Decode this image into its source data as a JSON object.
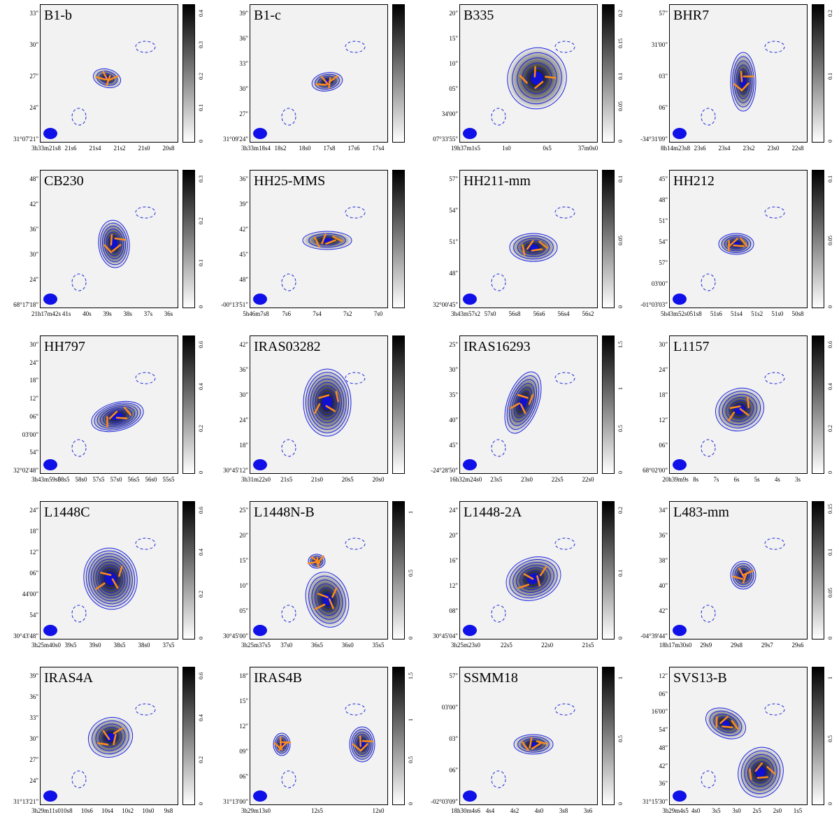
{
  "figure": {
    "type": "multi-panel polarization maps",
    "panels": [
      {
        "name": "B1-b",
        "cbar": [
          "0",
          "0.1",
          "0.2",
          "0.3",
          "0.4"
        ],
        "y": [
          "33\"",
          "30\"",
          "27\"",
          "24\"",
          "31°07'21\""
        ],
        "x": [
          "3h33m21s8",
          "21s6",
          "21s4",
          "21s2",
          "21s0",
          "20s8"
        ]
      },
      {
        "name": "B1-c",
        "cbar": [],
        "y": [
          "39\"",
          "36\"",
          "33\"",
          "30\"",
          "27\"",
          "31°09'24\""
        ],
        "x": [
          "3h33m18s4",
          "18s2",
          "18s0",
          "17s8",
          "17s6",
          "17s4"
        ]
      },
      {
        "name": "B335",
        "cbar": [
          "0",
          "0.05",
          "0.1",
          "0.15",
          "0.2"
        ],
        "y": [
          "20\"",
          "15\"",
          "10\"",
          "05\"",
          "34'00\"",
          "07°33'55\""
        ],
        "x": [
          "19h37m1s5",
          "1s0",
          "0s5",
          "37m0s0"
        ]
      },
      {
        "name": "BHR7",
        "cbar": [
          "0",
          "0.1",
          "0.2"
        ],
        "y": [
          "57\"",
          "31'00\"",
          "03\"",
          "06\"",
          "-34°31'09\""
        ],
        "x": [
          "8h14m23s8",
          "23s6",
          "23s4",
          "23s2",
          "23s0",
          "22s8"
        ]
      },
      {
        "name": "CB230",
        "cbar": [
          "0",
          "0.1",
          "0.2",
          "0.3"
        ],
        "y": [
          "48\"",
          "42\"",
          "36\"",
          "30\"",
          "24\"",
          "68°17'18\""
        ],
        "x": [
          "21h17m42s",
          "41s",
          "40s",
          "39s",
          "38s",
          "37s",
          "36s"
        ]
      },
      {
        "name": "HH25-MMS",
        "cbar": [],
        "y": [
          "36\"",
          "39\"",
          "42\"",
          "45\"",
          "48\"",
          "-00°13'51\""
        ],
        "x": [
          "5h46m7s8",
          "7s6",
          "7s4",
          "7s2",
          "7s0"
        ]
      },
      {
        "name": "HH211-mm",
        "cbar": [
          "0",
          "0.05",
          "0.1"
        ],
        "y": [
          "57\"",
          "54\"",
          "51\"",
          "48\"",
          "32°00'45\""
        ],
        "x": [
          "3h43m57s2",
          "57s0",
          "56s8",
          "56s6",
          "56s4",
          "56s2"
        ]
      },
      {
        "name": "HH212",
        "cbar": [
          "0",
          "0.05",
          "0.1"
        ],
        "y": [
          "45\"",
          "48\"",
          "51\"",
          "54\"",
          "57\"",
          "03'00\"",
          "-01°03'03\""
        ],
        "x": [
          "5h43m52s0",
          "51s8",
          "51s6",
          "51s4",
          "51s2",
          "51s0",
          "50s8"
        ]
      },
      {
        "name": "HH797",
        "cbar": [
          "0",
          "0.2",
          "0.4",
          "0.6"
        ],
        "y": [
          "30\"",
          "24\"",
          "18\"",
          "12\"",
          "06\"",
          "03'00\"",
          "54\"",
          "32°02'48\""
        ],
        "x": [
          "3h43m59s0",
          "58s5",
          "58s0",
          "57s5",
          "57s0",
          "56s5",
          "56s0",
          "55s5"
        ]
      },
      {
        "name": "IRAS03282",
        "cbar": [],
        "y": [
          "42\"",
          "36\"",
          "30\"",
          "24\"",
          "18\"",
          "30°45'12\""
        ],
        "x": [
          "3h31m22s0",
          "21s5",
          "21s0",
          "20s5",
          "20s0"
        ]
      },
      {
        "name": "IRAS16293",
        "cbar": [
          "0",
          "0.5",
          "1",
          "1.5"
        ],
        "y": [
          "25\"",
          "30\"",
          "35\"",
          "40\"",
          "45\"",
          "-24°28'50\""
        ],
        "x": [
          "16h32m24s0",
          "23s5",
          "23s0",
          "22s5",
          "22s0"
        ]
      },
      {
        "name": "L1157",
        "cbar": [
          "0",
          "0.2",
          "0.4",
          "0.6"
        ],
        "y": [
          "30\"",
          "24\"",
          "18\"",
          "12\"",
          "06\"",
          "68°02'00\""
        ],
        "x": [
          "20h39m9s",
          "8s",
          "7s",
          "6s",
          "5s",
          "4s",
          "3s"
        ]
      },
      {
        "name": "L1448C",
        "cbar": [
          "0",
          "0.2",
          "0.4",
          "0.6"
        ],
        "y": [
          "24\"",
          "18\"",
          "12\"",
          "06\"",
          "44'00\"",
          "54\"",
          "30°43'48\""
        ],
        "x": [
          "3h25m40s0",
          "39s5",
          "39s0",
          "38s5",
          "38s0",
          "37s5"
        ]
      },
      {
        "name": "L1448N-B",
        "cbar": [
          "0",
          "0.5",
          "1"
        ],
        "y": [
          "25\"",
          "20\"",
          "15\"",
          "10\"",
          "05\"",
          "30°45'00\""
        ],
        "x": [
          "3h25m37s5",
          "37s0",
          "36s5",
          "36s0",
          "35s5"
        ]
      },
      {
        "name": "L1448-2A",
        "cbar": [
          "0",
          "0.1",
          "0.2"
        ],
        "y": [
          "24\"",
          "20\"",
          "16\"",
          "12\"",
          "08\"",
          "30°45'04\""
        ],
        "x": [
          "3h25m23s0",
          "22s5",
          "22s0",
          "21s5"
        ]
      },
      {
        "name": "L483-mm",
        "cbar": [
          "0",
          "0.05",
          "0.1",
          "0.15"
        ],
        "y": [
          "34\"",
          "36\"",
          "38\"",
          "40\"",
          "42\"",
          "-04°39'44\""
        ],
        "x": [
          "18h17m30s0",
          "29s9",
          "29s8",
          "29s7",
          "29s6"
        ]
      },
      {
        "name": "IRAS4A",
        "cbar": [
          "0",
          "0.2",
          "0.4",
          "0.6"
        ],
        "y": [
          "39\"",
          "36\"",
          "33\"",
          "30\"",
          "27\"",
          "24\"",
          "31°13'21\""
        ],
        "x": [
          "3h29m11s0",
          "10s8",
          "10s6",
          "10s4",
          "10s2",
          "10s0",
          "9s8"
        ]
      },
      {
        "name": "IRAS4B",
        "cbar": [
          "0",
          "0.5",
          "1",
          "1.5"
        ],
        "y": [
          "18\"",
          "15\"",
          "12\"",
          "09\"",
          "06\"",
          "31°13'00\""
        ],
        "x": [
          "3h29m13s0",
          "12s5",
          "12s0"
        ]
      },
      {
        "name": "SSMM18",
        "cbar": [
          "0",
          "0.5",
          "1"
        ],
        "y": [
          "57\"",
          "03'00\"",
          "03\"",
          "06\"",
          "-02°03'09\""
        ],
        "x": [
          "18h30m4s6",
          "4s4",
          "4s2",
          "4s0",
          "3s8",
          "3s6"
        ]
      },
      {
        "name": "SVS13-B",
        "cbar": [
          "0",
          "0.5",
          "1"
        ],
        "y": [
          "12\"",
          "06\"",
          "16'00\"",
          "54\"",
          "48\"",
          "42\"",
          "36\"",
          "31°15'30\""
        ],
        "x": [
          "3h29m4s5",
          "4s0",
          "3s5",
          "3s0",
          "2s5",
          "2s0",
          "1s5"
        ]
      }
    ]
  }
}
